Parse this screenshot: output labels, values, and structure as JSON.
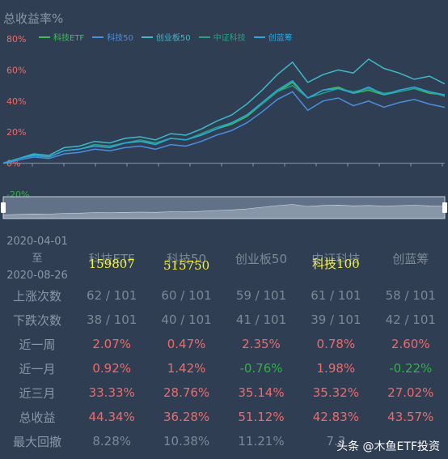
{
  "chart": {
    "title": "总收益率%",
    "legend": [
      {
        "name": "科技ETF",
        "color": "#3cbf5a"
      },
      {
        "name": "科技50",
        "color": "#4a8fe0"
      },
      {
        "name": "创业板50",
        "color": "#3fb9c9"
      },
      {
        "name": "中证科技",
        "color": "#2a9f86"
      },
      {
        "name": "创蓝筹",
        "color": "#2aa7e0"
      }
    ]
  },
  "chart_data": {
    "type": "line",
    "ylabel": "",
    "xlabel": "",
    "ylim": [
      -20,
      80
    ],
    "yticks": [
      "80%",
      "60%",
      "40%",
      "20%",
      "0%",
      "-20%"
    ],
    "grid": false,
    "legend_position": "top",
    "series": [
      {
        "name": "科技ETF",
        "values": [
          0,
          3,
          5,
          4,
          8,
          9,
          12,
          11,
          13,
          14,
          13,
          16,
          15,
          18,
          22,
          25,
          30,
          38,
          46,
          52,
          42,
          47,
          49,
          45,
          47,
          44,
          46,
          48,
          45,
          44
        ]
      },
      {
        "name": "科技50",
        "values": [
          0,
          2,
          4,
          3,
          6,
          7,
          9,
          8,
          10,
          11,
          9,
          12,
          11,
          14,
          18,
          21,
          26,
          33,
          41,
          46,
          34,
          40,
          42,
          37,
          40,
          36,
          39,
          41,
          38,
          36
        ]
      },
      {
        "name": "创业板50",
        "values": [
          0,
          3,
          6,
          5,
          10,
          11,
          14,
          13,
          16,
          17,
          15,
          19,
          18,
          22,
          27,
          31,
          38,
          47,
          57,
          65,
          52,
          57,
          60,
          58,
          67,
          61,
          58,
          54,
          56,
          51
        ]
      },
      {
        "name": "中证科技",
        "values": [
          0,
          3,
          5,
          4,
          8,
          9,
          12,
          11,
          13,
          15,
          13,
          16,
          15,
          19,
          23,
          26,
          31,
          38,
          46,
          50,
          42,
          45,
          48,
          46,
          48,
          45,
          46,
          48,
          46,
          43
        ]
      },
      {
        "name": "创蓝筹",
        "values": [
          0,
          3,
          5,
          4,
          8,
          9,
          11,
          10,
          13,
          14,
          12,
          16,
          15,
          18,
          22,
          26,
          31,
          39,
          47,
          53,
          42,
          47,
          48,
          45,
          49,
          44,
          47,
          49,
          46,
          44
        ]
      }
    ]
  },
  "stats": {
    "date_start": "2020-04-01",
    "date_to": "至",
    "date_end": "2020-08-26",
    "columns": [
      {
        "name": "科技ETF",
        "code": "159807"
      },
      {
        "name": "科技50",
        "code": "515750"
      },
      {
        "name": "创业板50",
        "code": ""
      },
      {
        "name": "中证科技",
        "code": "科技100"
      },
      {
        "name": "创蓝筹",
        "code": ""
      }
    ],
    "rows": [
      {
        "label": "上涨次数",
        "values": [
          "62 / 101",
          "60 / 101",
          "59 / 101",
          "61 / 101",
          "58 / 101"
        ],
        "colors": [
          "muted",
          "muted",
          "muted",
          "muted",
          "muted"
        ]
      },
      {
        "label": "下跌次数",
        "values": [
          "38 / 101",
          "40 / 101",
          "41 / 101",
          "39 / 101",
          "42 / 101"
        ],
        "colors": [
          "muted",
          "muted",
          "muted",
          "muted",
          "muted"
        ]
      },
      {
        "label": "近一周",
        "values": [
          "2.07%",
          "0.47%",
          "2.35%",
          "0.78%",
          "2.60%"
        ],
        "colors": [
          "red",
          "red",
          "red",
          "red",
          "red"
        ]
      },
      {
        "label": "近一月",
        "values": [
          "0.92%",
          "1.42%",
          "-0.76%",
          "1.98%",
          "-0.22%"
        ],
        "colors": [
          "red",
          "red",
          "green",
          "red",
          "green"
        ]
      },
      {
        "label": "近三月",
        "values": [
          "33.33%",
          "28.76%",
          "35.14%",
          "35.32%",
          "27.02%"
        ],
        "colors": [
          "red",
          "red",
          "red",
          "red",
          "red"
        ]
      },
      {
        "label": "总收益",
        "values": [
          "44.34%",
          "36.28%",
          "51.12%",
          "42.83%",
          "43.57%"
        ],
        "colors": [
          "red",
          "red",
          "red",
          "red",
          "red"
        ]
      },
      {
        "label": "最大回撤",
        "values": [
          "8.28%",
          "10.38%",
          "11.21%",
          "7.3",
          ""
        ],
        "colors": [
          "muted",
          "muted",
          "muted",
          "muted",
          "muted"
        ]
      }
    ]
  },
  "watermark": "头条 @木鱼ETF投资"
}
